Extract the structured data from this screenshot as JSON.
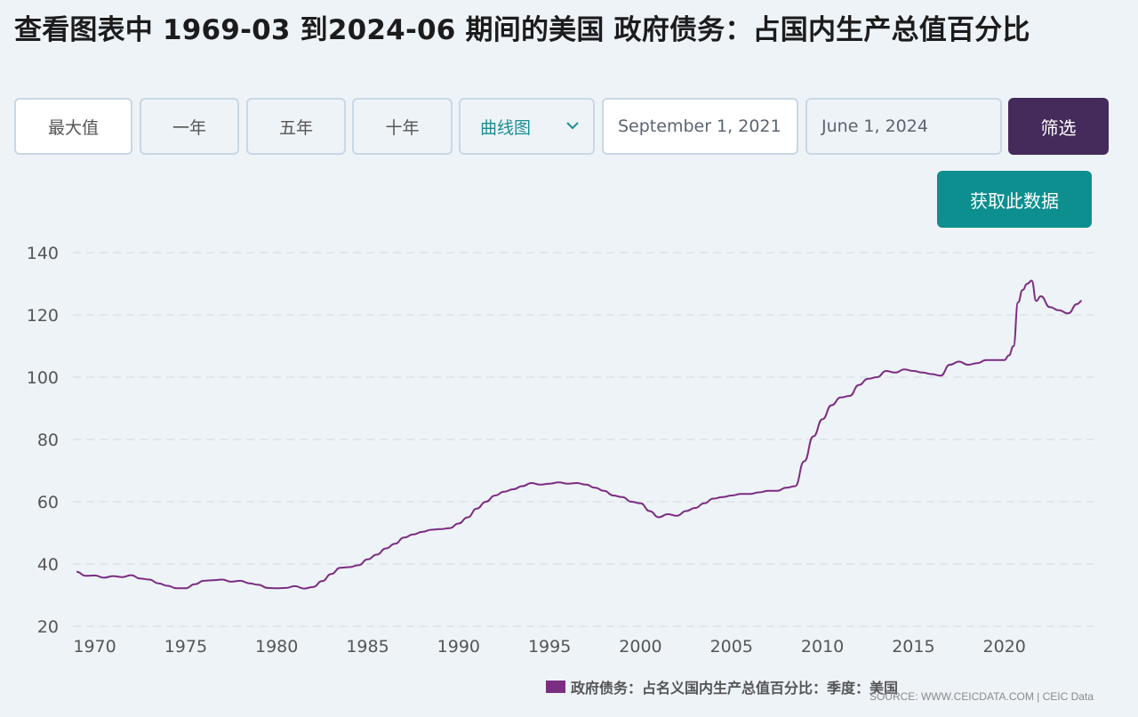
{
  "page": {
    "title": "查看图表中 1969-03 到2024-06 期间的美国 政府债务：占国内生产总值百分比"
  },
  "controls": {
    "ranges": [
      "最大值",
      "一年",
      "五年",
      "十年"
    ],
    "chart_type": "曲线图",
    "start_date": "September 1, 2021",
    "end_date": "June 1, 2024",
    "filter_label": "筛选",
    "get_data_label": "获取此数据"
  },
  "legend_label": "政府债务：占名义国内生产总值百分比：季度：美国",
  "source_text": "SOURCE: WWW.CEICDATA.COM | CEIC Data",
  "colors": {
    "line": "#7b2d82",
    "filter_button": "#442b5b",
    "get_data_button": "#0e8f8f",
    "grid": "#d8dde3"
  },
  "chart_data": {
    "type": "line",
    "title": "",
    "xlabel": "",
    "ylabel": "",
    "ylim": [
      20,
      140
    ],
    "xlim": [
      1968.8,
      2024.9
    ],
    "yticks": [
      20,
      40,
      60,
      80,
      100,
      120,
      140
    ],
    "xticks": [
      1970,
      1975,
      1980,
      1985,
      1990,
      1995,
      2000,
      2005,
      2010,
      2015,
      2020
    ],
    "grid": true,
    "legend_position": "bottom-right",
    "series": [
      {
        "name": "政府债务：占名义国内生产总值百分比：季度：美国",
        "x": [
          1969.0,
          1969.5,
          1970.0,
          1970.5,
          1971.0,
          1971.5,
          1972.0,
          1972.5,
          1973.0,
          1973.5,
          1974.0,
          1974.5,
          1975.0,
          1975.5,
          1976.0,
          1976.5,
          1977.0,
          1977.5,
          1978.0,
          1978.5,
          1979.0,
          1979.5,
          1980.0,
          1980.5,
          1981.0,
          1981.5,
          1982.0,
          1982.5,
          1983.0,
          1983.5,
          1984.0,
          1984.5,
          1985.0,
          1985.5,
          1986.0,
          1986.5,
          1987.0,
          1987.5,
          1988.0,
          1988.5,
          1989.0,
          1989.5,
          1990.0,
          1990.5,
          1991.0,
          1991.5,
          1992.0,
          1992.5,
          1993.0,
          1993.5,
          1994.0,
          1994.5,
          1995.0,
          1995.5,
          1996.0,
          1996.5,
          1997.0,
          1997.5,
          1998.0,
          1998.5,
          1999.0,
          1999.5,
          2000.0,
          2000.5,
          2001.0,
          2001.5,
          2002.0,
          2002.5,
          2003.0,
          2003.5,
          2004.0,
          2004.5,
          2005.0,
          2005.5,
          2006.0,
          2006.5,
          2007.0,
          2007.5,
          2008.0,
          2008.5,
          2009.0,
          2009.5,
          2010.0,
          2010.5,
          2011.0,
          2011.5,
          2012.0,
          2012.5,
          2013.0,
          2013.5,
          2014.0,
          2014.5,
          2015.0,
          2015.5,
          2016.0,
          2016.5,
          2017.0,
          2017.5,
          2018.0,
          2018.5,
          2019.0,
          2019.5,
          2020.0,
          2020.25,
          2020.5,
          2020.75,
          2021.0,
          2021.25,
          2021.5,
          2021.75,
          2022.0,
          2022.5,
          2023.0,
          2023.5,
          2024.0,
          2024.25
        ],
        "values": [
          37.5,
          36.2,
          36.3,
          35.6,
          36.1,
          35.8,
          36.4,
          35.3,
          35.0,
          33.8,
          33.0,
          32.2,
          32.2,
          33.5,
          34.6,
          34.8,
          35.0,
          34.3,
          34.6,
          33.8,
          33.3,
          32.3,
          32.2,
          32.3,
          32.9,
          32.1,
          32.6,
          34.5,
          36.8,
          38.8,
          39.0,
          39.6,
          41.5,
          43.0,
          45.0,
          46.5,
          48.5,
          49.5,
          50.3,
          51.0,
          51.2,
          51.5,
          53.0,
          55.0,
          57.8,
          60.0,
          62.0,
          63.2,
          64.0,
          65.0,
          66.0,
          65.5,
          65.8,
          66.2,
          65.8,
          66.0,
          65.5,
          64.5,
          63.5,
          62.0,
          61.5,
          60.0,
          59.5,
          57.0,
          55.0,
          56.0,
          55.5,
          57.0,
          58.0,
          59.5,
          61.0,
          61.5,
          62.0,
          62.5,
          62.5,
          63.0,
          63.5,
          63.5,
          64.5,
          65.0,
          73.0,
          81.0,
          86.5,
          91.0,
          93.5,
          94.0,
          97.5,
          99.5,
          100.0,
          102.0,
          101.5,
          102.5,
          102.0,
          101.5,
          101.0,
          100.5,
          104.0,
          105.0,
          104.0,
          104.5,
          105.5,
          105.5,
          105.5,
          107.0,
          110.0,
          124.0,
          128.0,
          130.0,
          131.0,
          124.5,
          126.0,
          122.5,
          121.5,
          120.5,
          123.5,
          124.5
        ]
      }
    ]
  }
}
